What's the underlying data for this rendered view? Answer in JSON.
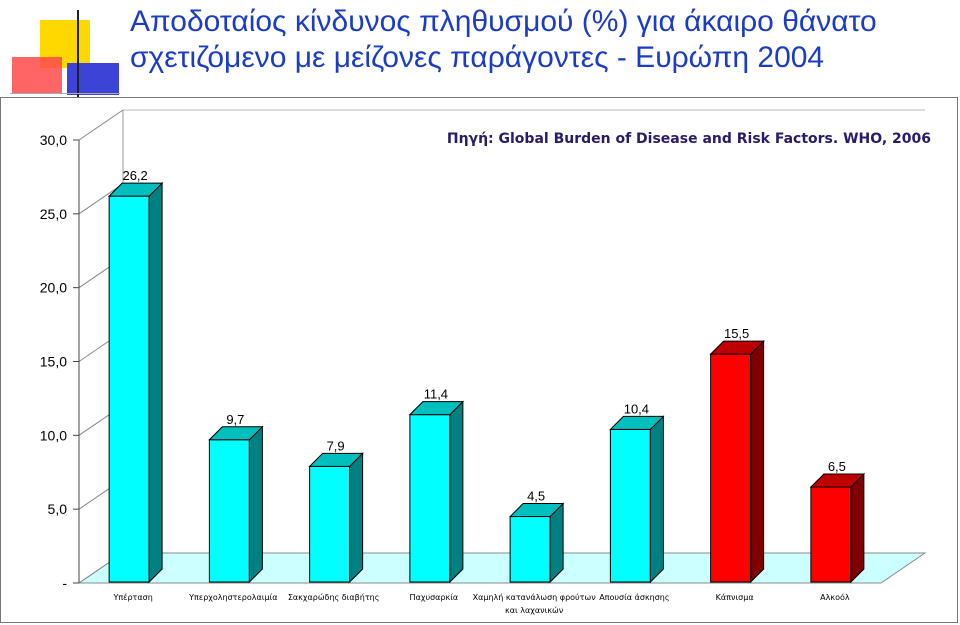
{
  "slide": {
    "title_line1": "Αποδοταίος κίνδυνος πληθυσμού (%) για άκαιρο θάνατο",
    "title_line2": "σχετιζόμενο με μείζονες παράγοντες  - Ευρώπη 2004"
  },
  "chart_data": {
    "type": "bar",
    "title": "",
    "source": "Πηγή: Global Burden of Disease and Risk Factors. WHO, 2006",
    "categories": [
      "Υπέρταση",
      "Υπερχοληστερολαιμία",
      "Σακχαρώδης διαβήτης",
      "Παχυσαρκία",
      "Χαμηλή κατανάλωση φρούτων και λαχανικών",
      "Απουσία άσκησης",
      "Κάπνισμα",
      "Αλκοόλ"
    ],
    "category_lines": [
      [
        "Υπέρταση"
      ],
      [
        "Υπερχοληστερολαιμία"
      ],
      [
        "Σακχαρώδης διαβήτης"
      ],
      [
        "Παχυσαρκία"
      ],
      [
        "Χαμηλή κατανάλωση φρούτων",
        "και λαχανικών"
      ],
      [
        "Απουσία άσκησης"
      ],
      [
        "Κάπνισμα"
      ],
      [
        "Αλκοόλ"
      ]
    ],
    "values": [
      26.2,
      9.7,
      7.9,
      11.4,
      4.5,
      10.4,
      15.5,
      6.5
    ],
    "value_labels": [
      "26,2",
      "9,7",
      "7,9",
      "11,4",
      "4,5",
      "10,4",
      "15,5",
      "6,5"
    ],
    "bar_colors": [
      "#00ffff",
      "#00ffff",
      "#00ffff",
      "#00ffff",
      "#00ffff",
      "#00ffff",
      "#ff0000",
      "#ff0000"
    ],
    "ylim": [
      0,
      30
    ],
    "yticks": [
      0,
      5,
      10,
      15,
      20,
      25,
      30
    ],
    "ytick_labels": [
      "-",
      "5,0",
      "10,0",
      "15,0",
      "20,0",
      "25,0",
      "30,0"
    ],
    "xlabel": "",
    "ylabel": "",
    "grid": false,
    "style": "3d-column",
    "colors": {
      "floor": "#ccffff",
      "wall": "#ffffff",
      "axis": "#666666"
    }
  }
}
